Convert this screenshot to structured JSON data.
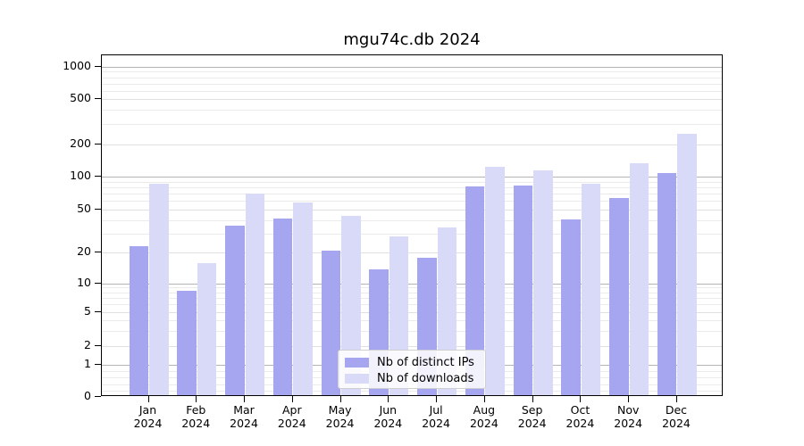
{
  "chart_data": {
    "type": "bar",
    "title": "mgu74c.db 2024",
    "categories": [
      "Jan 2024",
      "Feb 2024",
      "Mar 2024",
      "Apr 2024",
      "May 2024",
      "Jun 2024",
      "Jul 2024",
      "Aug 2024",
      "Sep 2024",
      "Oct 2024",
      "Nov 2024",
      "Dec 2024"
    ],
    "series": [
      {
        "name": "Nb of distinct IPs",
        "color": "#a5a5f0",
        "values": [
          22,
          8,
          34,
          40,
          20,
          13,
          17,
          79,
          80,
          39,
          61,
          103
        ]
      },
      {
        "name": "Nb of downloads",
        "color": "#d9d9f8",
        "values": [
          83,
          15,
          68,
          56,
          42,
          27,
          33,
          120,
          110,
          83,
          128,
          240
        ]
      }
    ],
    "xlabel": "",
    "ylabel": "",
    "yscale": "symlog",
    "y_ticks": [
      0,
      1,
      2,
      5,
      10,
      20,
      50,
      100,
      200,
      500,
      1000
    ],
    "y_tick_labels": [
      "0",
      "1",
      "2",
      "5",
      "10",
      "20",
      "50",
      "100",
      "200",
      "500",
      "1000"
    ],
    "ylim": [
      0,
      1200
    ],
    "grid": "horizontal, major and minor",
    "legend_position": "lower center inside plot",
    "colors": {
      "major_grid": "#b4b4b4",
      "sub_grid": "#e0e0e0",
      "minor_grid": "#ebebeb",
      "axis": "#000000"
    }
  }
}
